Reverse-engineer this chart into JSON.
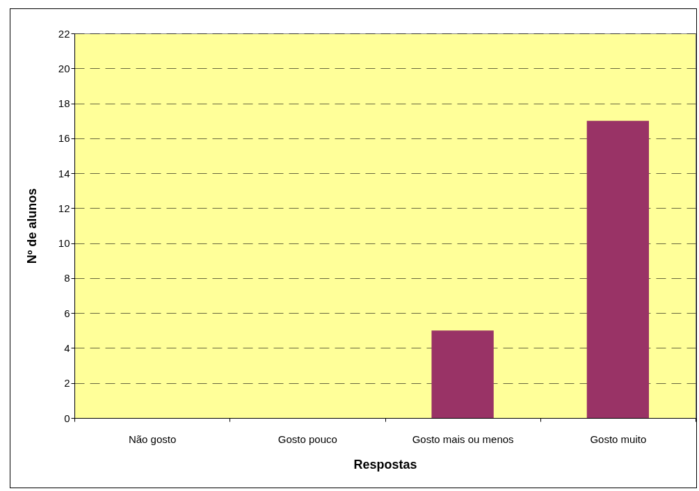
{
  "chart_data": {
    "type": "bar",
    "xlabel": "Respostas",
    "ylabel": "Nº de alunos",
    "categories": [
      "Não gosto",
      "Gosto pouco",
      "Gosto mais ou menos",
      "Gosto muito"
    ],
    "values": [
      0,
      0,
      5,
      17
    ],
    "color": "#993366",
    "ylim": [
      0,
      22
    ],
    "yticks": [
      0,
      2,
      4,
      6,
      8,
      10,
      12,
      14,
      16,
      18,
      20,
      22
    ],
    "grid": "y"
  }
}
